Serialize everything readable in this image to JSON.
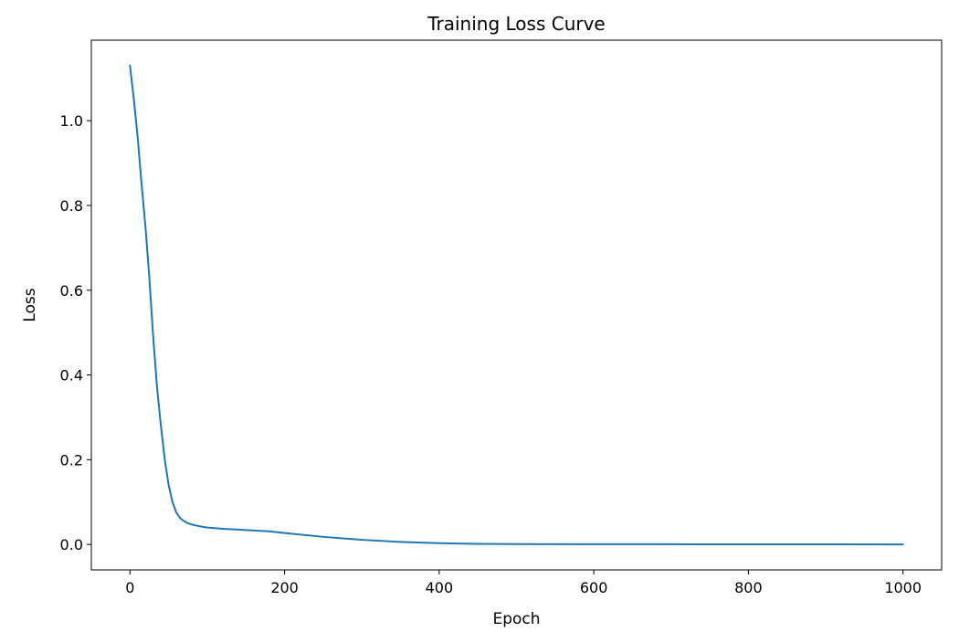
{
  "chart_data": {
    "type": "line",
    "title": "Training Loss Curve",
    "xlabel": "Epoch",
    "ylabel": "Loss",
    "xlim": [
      -50,
      1050
    ],
    "ylim": [
      -0.06,
      1.19
    ],
    "xticks": [
      0,
      200,
      400,
      600,
      800,
      1000
    ],
    "xtick_labels": [
      "0",
      "200",
      "400",
      "600",
      "800",
      "1000"
    ],
    "yticks": [
      0.0,
      0.2,
      0.4,
      0.6,
      0.8,
      1.0
    ],
    "ytick_labels": [
      "0.0",
      "0.2",
      "0.4",
      "0.6",
      "0.8",
      "1.0"
    ],
    "grid": false,
    "legend": "none",
    "line_color": "#1f77b4",
    "series": [
      {
        "x": [
          0,
          5,
          10,
          15,
          20,
          25,
          30,
          35,
          40,
          45,
          50,
          55,
          60,
          65,
          70,
          75,
          80,
          90,
          100,
          120,
          140,
          160,
          180,
          200,
          250,
          300,
          350,
          400,
          450,
          500,
          600,
          700,
          800,
          900,
          1000
        ],
        "values": [
          1.13,
          1.05,
          0.96,
          0.85,
          0.75,
          0.63,
          0.49,
          0.37,
          0.28,
          0.2,
          0.14,
          0.1,
          0.075,
          0.062,
          0.055,
          0.05,
          0.047,
          0.043,
          0.04,
          0.037,
          0.035,
          0.033,
          0.031,
          0.027,
          0.018,
          0.011,
          0.006,
          0.003,
          0.0015,
          0.001,
          0.0007,
          0.0005,
          0.0004,
          0.0003,
          0.0002
        ]
      }
    ]
  }
}
